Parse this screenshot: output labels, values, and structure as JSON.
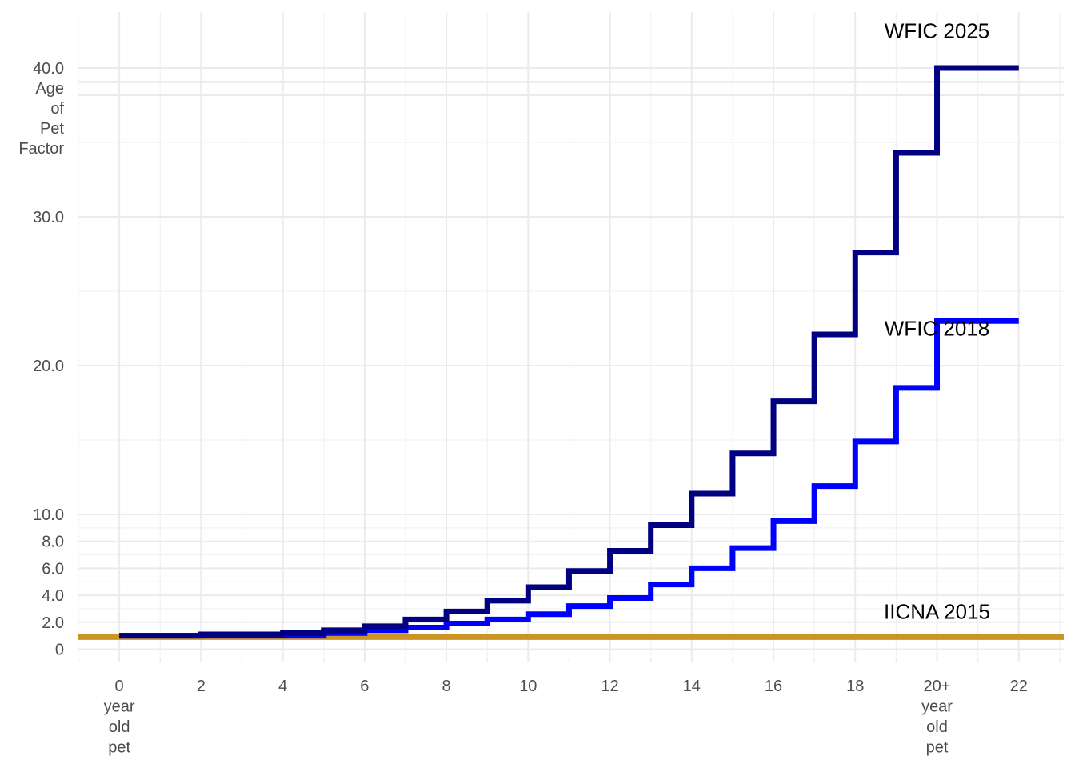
{
  "chart_data": {
    "type": "line",
    "step": true,
    "title": "",
    "xlabel": "",
    "ylabel": "",
    "xlim": [
      -1,
      23.1
    ],
    "ylim": [
      -1,
      45
    ],
    "grid": true,
    "legend": "none",
    "x_ticks": [
      {
        "value": 0,
        "lines": [
          "0",
          "year",
          "old",
          "pet"
        ]
      },
      {
        "value": 2,
        "lines": [
          "2"
        ]
      },
      {
        "value": 4,
        "lines": [
          "4"
        ]
      },
      {
        "value": 6,
        "lines": [
          "6"
        ]
      },
      {
        "value": 8,
        "lines": [
          "8"
        ]
      },
      {
        "value": 10,
        "lines": [
          "10"
        ]
      },
      {
        "value": 12,
        "lines": [
          "12"
        ]
      },
      {
        "value": 14,
        "lines": [
          "14"
        ]
      },
      {
        "value": 16,
        "lines": [
          "16"
        ]
      },
      {
        "value": 18,
        "lines": [
          "18"
        ]
      },
      {
        "value": 20,
        "lines": [
          "20+",
          "year",
          "old",
          "pet"
        ]
      },
      {
        "value": 22,
        "lines": [
          "22"
        ]
      }
    ],
    "y_ticks": [
      {
        "value": 0,
        "label": "0"
      },
      {
        "value": 2,
        "label": "2.0"
      },
      {
        "value": 4,
        "label": "4.0"
      },
      {
        "value": 6,
        "label": "6.0"
      },
      {
        "value": 8,
        "label": "8.0"
      },
      {
        "value": 10,
        "label": "10.0"
      },
      {
        "value": 20,
        "label": "20.0"
      },
      {
        "value": 30,
        "label": "30.0"
      },
      {
        "value": 40,
        "label": "40.0"
      }
    ],
    "y_axis_caption": [
      "Age",
      "of",
      "Pet",
      "Factor"
    ],
    "series": [
      {
        "name": "WFIC 2025",
        "color": "#000080",
        "x": [
          0,
          1,
          2,
          3,
          4,
          5,
          6,
          7,
          8,
          9,
          10,
          11,
          12,
          13,
          14,
          15,
          16,
          17,
          18,
          19,
          20,
          21,
          22
        ],
        "values": [
          1.0,
          1.0,
          1.1,
          1.1,
          1.2,
          1.4,
          1.7,
          2.2,
          2.8,
          3.6,
          4.6,
          5.8,
          7.3,
          9.2,
          11.4,
          14.1,
          17.6,
          22.1,
          27.6,
          34.3,
          40.0,
          40.0,
          40.0
        ],
        "label_at": [
          20.0,
          42.5
        ]
      },
      {
        "name": "WFIC 2018",
        "color": "#0000ff",
        "x": [
          0,
          1,
          2,
          3,
          4,
          5,
          6,
          7,
          8,
          9,
          10,
          11,
          12,
          13,
          14,
          15,
          16,
          17,
          18,
          19,
          20,
          21,
          22
        ],
        "values": [
          1.0,
          1.0,
          1.0,
          1.0,
          1.0,
          1.2,
          1.4,
          1.6,
          1.9,
          2.2,
          2.6,
          3.2,
          3.8,
          4.8,
          6.0,
          7.5,
          9.5,
          11.9,
          14.9,
          18.5,
          23.0,
          23.0,
          23.0
        ],
        "label_at": [
          20.0,
          22.5
        ]
      },
      {
        "name": "IICNA 2015",
        "color": "#cc9422",
        "x": [
          -1,
          23.1
        ],
        "values": [
          0.9,
          0.9
        ],
        "label_at": [
          20.0,
          2.8
        ]
      }
    ]
  }
}
